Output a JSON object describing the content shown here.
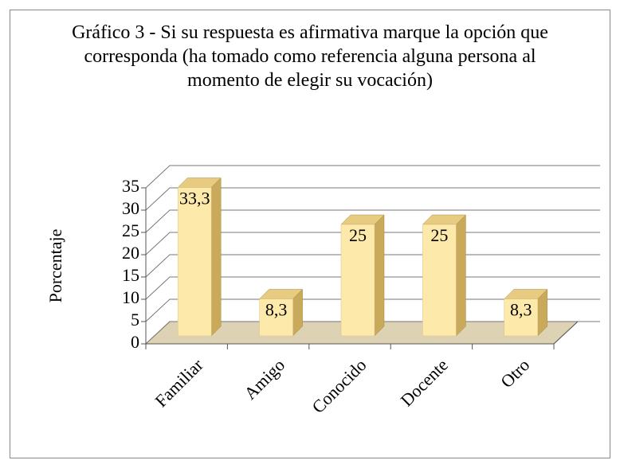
{
  "chart_data": {
    "type": "bar3d",
    "title": "Gráfico 3 - Si su respuesta es afirmativa marque la opción que corresponda (ha tomado como referencia alguna persona al momento de elegir su vocación)",
    "ylabel": "Porcentaje",
    "categories": [
      "Familiar",
      "Amigo",
      "Conocido",
      "Docente",
      "Otro"
    ],
    "values": [
      33.3,
      8.3,
      25,
      25,
      8.3
    ],
    "value_labels": [
      "33,3",
      "8,3",
      "25",
      "25",
      "8,3"
    ],
    "color": "#fde9a9",
    "ylim": [
      0,
      35
    ],
    "yticks": [
      0,
      5,
      10,
      15,
      20,
      25,
      30,
      35
    ],
    "grid": true
  }
}
